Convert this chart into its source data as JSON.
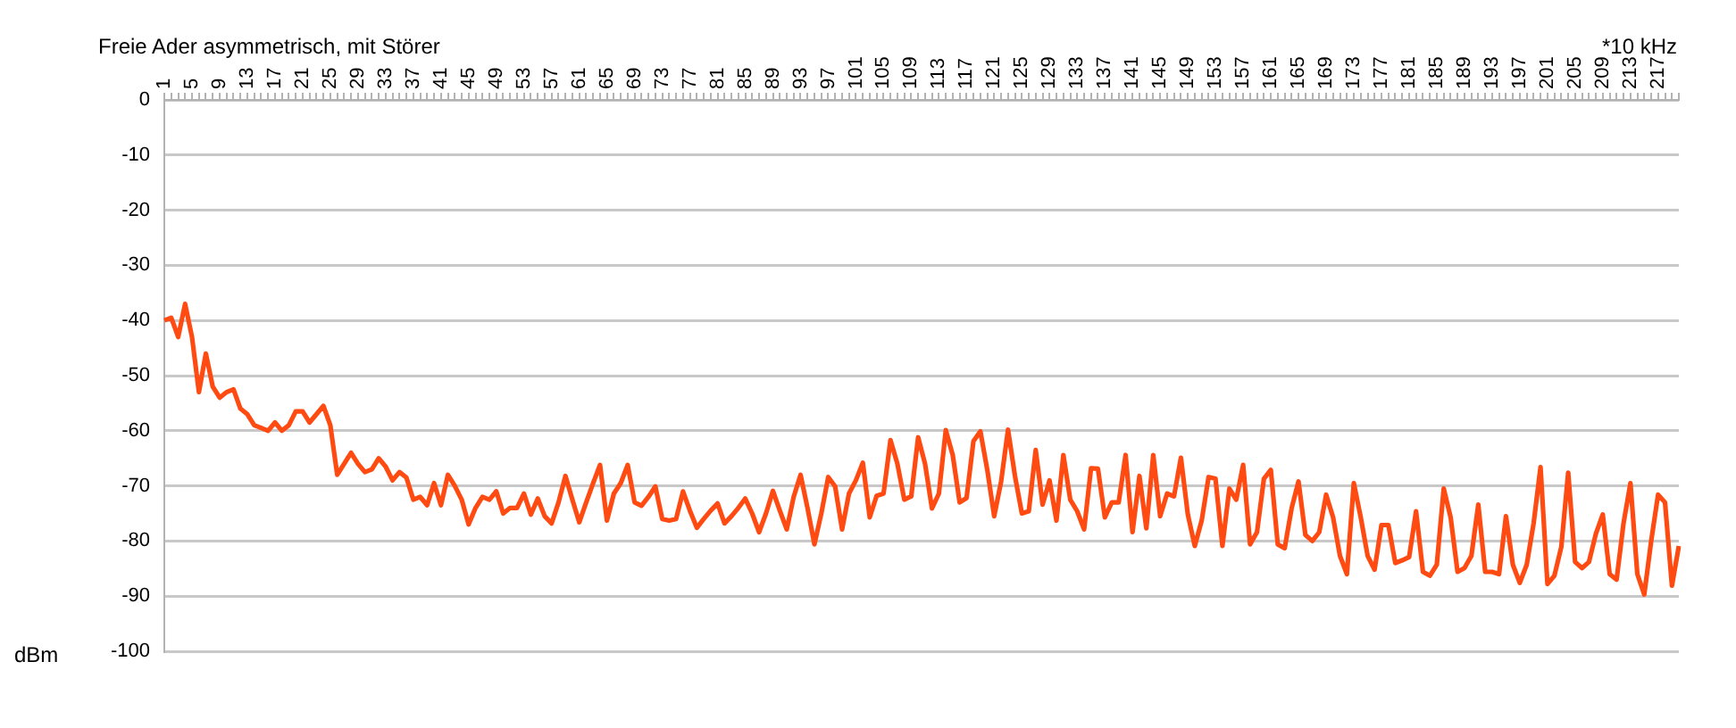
{
  "chart_data": {
    "type": "line",
    "title": "Freie Ader asymmetrisch, mit Störer",
    "xlabel": "*10 kHz",
    "ylabel": "dBm",
    "categories": [
      "1",
      null,
      null,
      null,
      "5",
      null,
      null,
      null,
      "9",
      null,
      null,
      null,
      "13",
      null,
      null,
      null,
      "17",
      null,
      null,
      null,
      "21",
      null,
      null,
      null,
      "25",
      null,
      null,
      null,
      "29",
      null,
      null,
      null,
      "33",
      null,
      null,
      null,
      "37",
      null,
      null,
      null,
      "41",
      null,
      null,
      null,
      "45",
      null,
      null,
      null,
      "49",
      null,
      null,
      null,
      "53",
      null,
      null,
      null,
      "57",
      null,
      null,
      null,
      "61",
      null,
      null,
      null,
      "65",
      null,
      null,
      null,
      "69",
      null,
      null,
      null,
      "73",
      null,
      null,
      null,
      "77",
      null,
      null,
      null,
      "81",
      null,
      null,
      null,
      "85",
      null,
      null,
      null,
      "89",
      null,
      null,
      null,
      "93",
      null,
      null,
      null,
      "97",
      null,
      null,
      null,
      "101",
      null,
      null,
      null,
      "105",
      null,
      null,
      null,
      "109",
      null,
      null,
      null,
      "113",
      null,
      null,
      null,
      "117",
      null,
      null,
      null,
      "121",
      null,
      null,
      null,
      "125",
      null,
      null,
      null,
      "129",
      null,
      null,
      null,
      "133",
      null,
      null,
      null,
      "137",
      null,
      null,
      null,
      "141",
      null,
      null,
      null,
      "145",
      null,
      null,
      null,
      "149",
      null,
      null,
      null,
      "153",
      null,
      null,
      null,
      "157",
      null,
      null,
      null,
      "161",
      null,
      null,
      null,
      "165",
      null,
      null,
      null,
      "169",
      null,
      null,
      null,
      "173",
      null,
      null,
      null,
      "177",
      null,
      null,
      null,
      "181",
      null,
      null,
      null,
      "185",
      null,
      null,
      null,
      "189",
      null,
      null,
      null,
      "193",
      null,
      null,
      null,
      "197",
      null,
      null,
      null,
      "201",
      null,
      null,
      null,
      "205",
      null,
      null,
      null,
      "209",
      null,
      null,
      null,
      "213",
      null,
      null,
      null,
      "217",
      null,
      null,
      null
    ],
    "series": [
      {
        "color": "#ff4a12",
        "values": [
          -40,
          -39.5,
          -43,
          -37,
          -43,
          -53,
          -46,
          -52,
          -54,
          -53,
          -52.5,
          -56,
          -57,
          -59,
          -59.5,
          -60,
          -58.5,
          -60,
          -59,
          -56.5,
          -56.5,
          -58.5,
          -57,
          -55.5,
          -59,
          -68,
          -66,
          -64,
          -66,
          -67.5,
          -67,
          -65,
          -66.5,
          -69,
          -67.5,
          -68.5,
          -72.5,
          -72,
          -73.5,
          -69.5,
          -73.5,
          -68,
          -70,
          -72.5,
          -77,
          -74,
          -72,
          -72.5,
          -71,
          -75,
          -74,
          -74,
          -71.4,
          -75.2,
          -72.3,
          -75.5,
          -76.8,
          -73,
          -68.2,
          -72.5,
          -76.6,
          -73,
          -69.5,
          -66.2,
          -76.3,
          -71.4,
          -69.5,
          -66.2,
          -73,
          -73.6,
          -72,
          -70.1,
          -76,
          -76.3,
          -76,
          -71,
          -74.5,
          -77.6,
          -76,
          -74.5,
          -73.2,
          -76.8,
          -75.5,
          -74,
          -72.3,
          -75,
          -78.4,
          -75,
          -70.9,
          -74.5,
          -77.9,
          -72,
          -68,
          -74,
          -80.6,
          -75,
          -68.4,
          -70.1,
          -77.9,
          -71.4,
          -69,
          -65.8,
          -75.7,
          -71.8,
          -71.4,
          -61.7,
          -66,
          -72.5,
          -71.9,
          -61.2,
          -66,
          -74.1,
          -71.4,
          -59.9,
          -64.4,
          -73,
          -72.2,
          -61.9,
          -60.1,
          -67.1,
          -75.5,
          -69.2,
          -59.8,
          -68.2,
          -75,
          -74.6,
          -63.5,
          -73.4,
          -69,
          -76.3,
          -64.4,
          -72.5,
          -74.6,
          -77.9,
          -66.8,
          -66.9,
          -75.7,
          -73,
          -73,
          -64.4,
          -78.4,
          -68.2,
          -77.7,
          -64.4,
          -75.5,
          -71.4,
          -71.9,
          -64.9,
          -75.2,
          -80.9,
          -76.3,
          -68.4,
          -68.7,
          -80.9,
          -70.5,
          -72.5,
          -66.2,
          -80.6,
          -78.4,
          -68.7,
          -67.1,
          -80.6,
          -81.3,
          -74.1,
          -69.2,
          -78.9,
          -80,
          -78.4,
          -71.6,
          -75.7,
          -82.7,
          -86,
          -69.5,
          -75.7,
          -82.7,
          -85.2,
          -77.1,
          -77.1,
          -84,
          -83.5,
          -82.9,
          -74.6,
          -85.6,
          -86.3,
          -84.3,
          -70.5,
          -75.7,
          -85.6,
          -84.9,
          -82.7,
          -73.4,
          -85.6,
          -85.6,
          -86,
          -75.5,
          -84.3,
          -87.6,
          -84.3,
          -76.8,
          -66.6,
          -87.8,
          -86.3,
          -81.1,
          -67.6,
          -83.8,
          -84.9,
          -83.8,
          -78.7,
          -75.2,
          -86,
          -87,
          -76.8,
          -69.5,
          -86,
          -89.7,
          -80,
          -71.6,
          -73,
          -88.1,
          -80.9
        ]
      }
    ],
    "ylim": [
      -100,
      0
    ],
    "yticks": [
      -100,
      -90,
      -80,
      -70,
      -60,
      -50,
      -40,
      -30,
      -20,
      -10,
      0
    ],
    "grid": "y",
    "legend": false
  }
}
